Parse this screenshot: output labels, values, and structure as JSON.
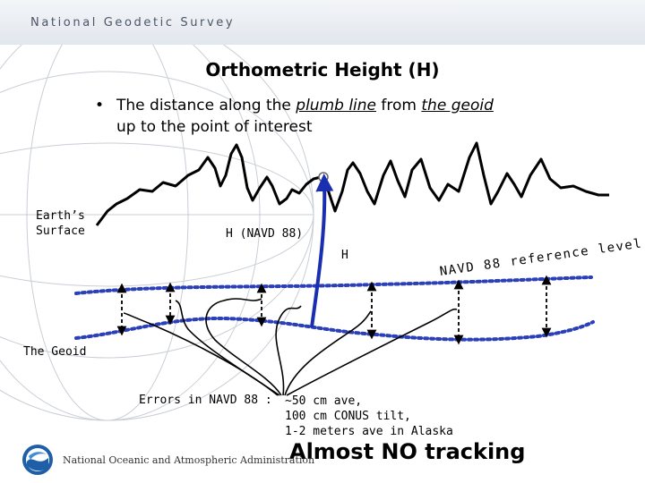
{
  "header": {
    "org_name": "National Geodetic Survey"
  },
  "slide": {
    "title": "Orthometric Height (H)",
    "bullet_symbol": "•",
    "bullet_text_part1": "The distance along the ",
    "bullet_plumb_line": "plumb line",
    "bullet_text_part2": " from ",
    "bullet_the_geoid": "the geoid",
    "bullet_text_line2": "up to the point of interest"
  },
  "diagram": {
    "earth_surface_label_line1": "Earth’s",
    "earth_surface_label_line2": "Surface",
    "h_navd_label": "H (NAVD 88)",
    "h_label": "H",
    "reference_level_label": "NAVD 88 reference level",
    "geoid_label": "The Geoid",
    "errors_label": "Errors in NAVD 88 :",
    "errors_values": [
      "~50 cm ave,",
      "100 cm CONUS tilt,",
      "1-2 meters ave in Alaska"
    ],
    "tracking_note": "Almost NO tracking",
    "colors": {
      "plumb_line": "#1a2fb0",
      "dotted_lines": "#2a3fb8",
      "terrain": "#000000"
    }
  },
  "footer": {
    "agency_name": "National Oceanic and Atmospheric Administration",
    "logo_icon": "noaa-logo-icon"
  }
}
